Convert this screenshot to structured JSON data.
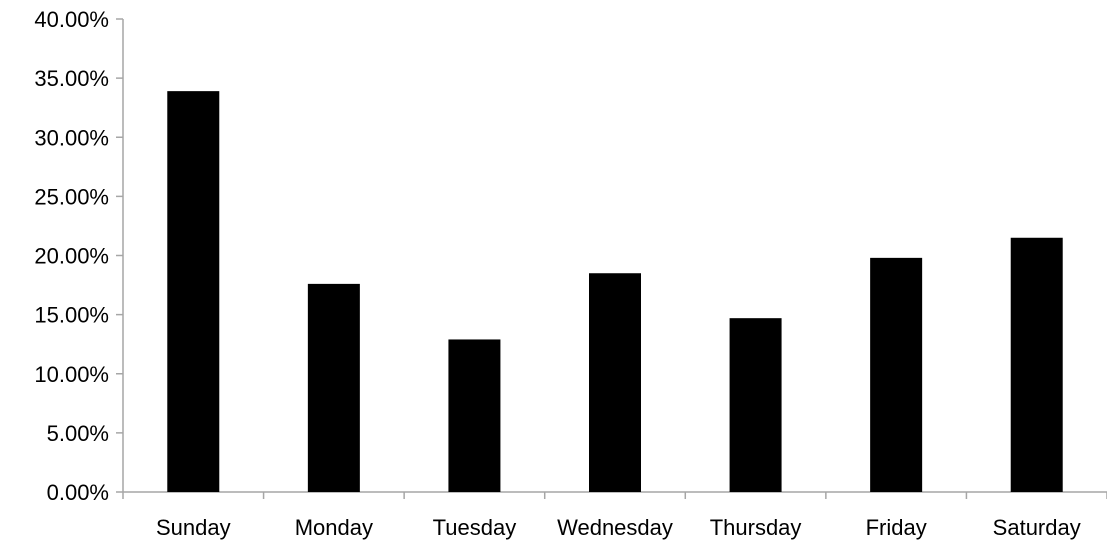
{
  "chart_data": {
    "type": "bar",
    "categories": [
      "Sunday",
      "Monday",
      "Tuesday",
      "Wednesday",
      "Thursday",
      "Friday",
      "Saturday"
    ],
    "values": [
      33.9,
      17.6,
      12.9,
      18.5,
      14.7,
      19.8,
      21.5
    ],
    "ylim": [
      0,
      40
    ],
    "yticks": [
      "0.00%",
      "5.00%",
      "10.00%",
      "15.00%",
      "20.00%",
      "25.00%",
      "30.00%",
      "35.00%",
      "40.00%"
    ],
    "title": "",
    "xlabel": "",
    "ylabel": "",
    "grid": false,
    "legend": "none",
    "bar_color": "#000000",
    "axis_color": "#a6a6a6"
  }
}
